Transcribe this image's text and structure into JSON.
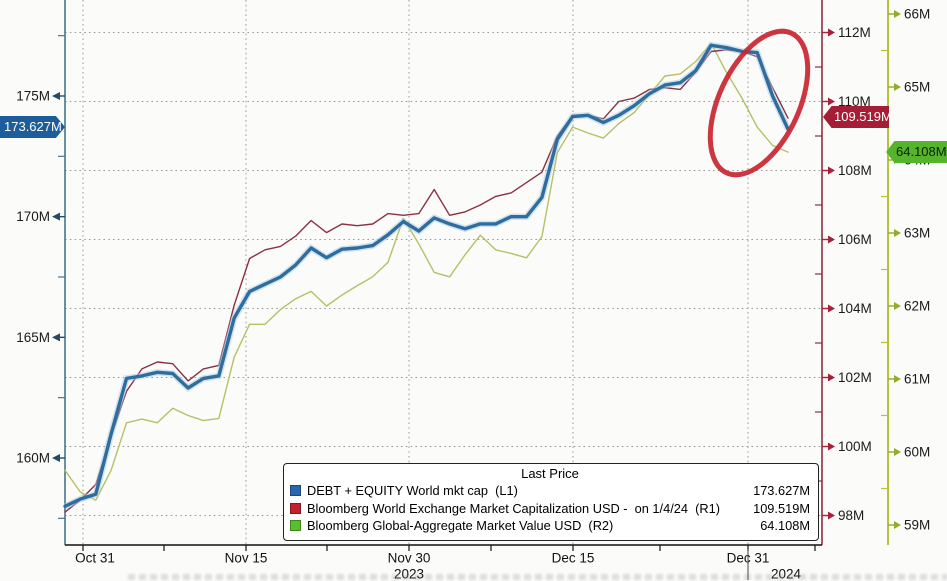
{
  "chart_data": {
    "type": "line",
    "title": "",
    "x_axis": {
      "ticks": [
        {
          "label": "Oct 31"
        },
        {
          "label": "Nov 15"
        },
        {
          "label": "Nov 30"
        },
        {
          "label": "Dec 15"
        },
        {
          "label": "Dec 31"
        }
      ],
      "year_labels": [
        "2023",
        "2024"
      ]
    },
    "axes": {
      "left": {
        "id": "L1",
        "axis_color": "#47758f",
        "arrow_color": "#234a66",
        "ticks": [
          {
            "value": 175,
            "label": "175M"
          },
          {
            "value": 170,
            "label": "170M"
          },
          {
            "value": 165,
            "label": "165M"
          },
          {
            "value": 160,
            "label": "160M"
          }
        ],
        "minor_ticks": [
          177.5,
          172.5,
          167.5,
          162.5,
          157.5
        ],
        "visible_range": [
          156.4,
          179.0
        ]
      },
      "right_1": {
        "id": "R1",
        "axis_color": "#8e2e3f",
        "arrow_color": "#a8203a",
        "ticks": [
          {
            "value": 112,
            "label": "112M"
          },
          {
            "value": 110,
            "label": "110M"
          },
          {
            "value": 108,
            "label": "108M"
          },
          {
            "value": 106,
            "label": "106M"
          },
          {
            "value": 104,
            "label": "104M"
          },
          {
            "value": 102,
            "label": "102M"
          },
          {
            "value": 100,
            "label": "100M"
          },
          {
            "value": 98,
            "label": "98M"
          }
        ],
        "minor_ticks": [
          111,
          109,
          107,
          105,
          103,
          101,
          99
        ],
        "visible_range": [
          97.1,
          112.9
        ]
      },
      "right_2": {
        "id": "R2",
        "axis_color": "#b5c437",
        "arrow_color": "#93ad28",
        "ticks": [
          {
            "value": 66,
            "label": "66M"
          },
          {
            "value": 65,
            "label": "65M"
          },
          {
            "value": 64,
            "label": "64M"
          },
          {
            "value": 63,
            "label": "63M"
          },
          {
            "value": 62,
            "label": "62M"
          },
          {
            "value": 61,
            "label": "61M"
          },
          {
            "value": 60,
            "label": "60M"
          },
          {
            "value": 59,
            "label": "59M"
          }
        ],
        "minor_ticks": [
          65.5,
          64.5,
          63.5,
          62.5,
          61.5,
          60.5,
          59.5
        ],
        "visible_range": [
          58.7,
          66.2
        ]
      }
    },
    "series": [
      {
        "name": "DEBT + EQUITY World mkt cap  (L1)",
        "axis": "L1",
        "color": "#2e6d9e",
        "width": 3.4,
        "last_price": "173.627M",
        "values": [
          158.0,
          158.3,
          158.5,
          161.0,
          163.3,
          163.4,
          163.55,
          163.5,
          162.9,
          163.3,
          163.4,
          165.8,
          166.9,
          167.2,
          167.5,
          168.0,
          168.7,
          168.3,
          168.65,
          168.7,
          168.8,
          169.25,
          169.8,
          169.4,
          169.95,
          169.7,
          169.5,
          169.7,
          169.7,
          170.0,
          170.0,
          170.8,
          173.2,
          174.15,
          174.2,
          173.9,
          174.2,
          174.6,
          175.1,
          175.45,
          175.55,
          176.05,
          177.1,
          177.0,
          176.85,
          176.8,
          175.0,
          173.627
        ]
      },
      {
        "name": "Bloomberg World Exchange Market Capitalization USD -  on 1/4/24  (R1)",
        "axis": "R1",
        "color": "#8b3145",
        "width": 1.4,
        "last_price": "109.519M",
        "values": [
          98.1,
          98.45,
          98.9,
          100.3,
          101.6,
          102.25,
          102.45,
          102.4,
          101.9,
          102.25,
          102.35,
          104.1,
          105.45,
          105.7,
          105.8,
          106.1,
          106.55,
          106.2,
          106.45,
          106.4,
          106.45,
          106.75,
          106.7,
          106.75,
          107.45,
          106.7,
          106.8,
          107.0,
          107.25,
          107.35,
          107.65,
          107.95,
          109.0,
          109.6,
          109.6,
          109.5,
          110.0,
          110.1,
          110.35,
          110.4,
          110.35,
          110.85,
          111.45,
          111.5,
          111.45,
          111.3,
          110.4,
          109.519
        ]
      },
      {
        "name": "Bloomberg Global-Aggregate Market Value USD  (R2)",
        "axis": "R2",
        "color": "#b8bf66",
        "width": 1.4,
        "last_price": "64.108M",
        "values": [
          59.75,
          59.45,
          59.34,
          59.75,
          60.4,
          60.45,
          60.4,
          60.6,
          60.5,
          60.43,
          60.46,
          61.3,
          61.75,
          61.75,
          61.95,
          62.1,
          62.2,
          62.0,
          62.15,
          62.28,
          62.4,
          62.6,
          63.2,
          62.85,
          62.46,
          62.4,
          62.7,
          62.97,
          62.77,
          62.72,
          62.66,
          62.95,
          64.1,
          64.45,
          64.37,
          64.3,
          64.5,
          64.65,
          64.9,
          65.15,
          65.18,
          65.35,
          65.6,
          65.2,
          64.85,
          64.45,
          64.2,
          64.108
        ]
      }
    ],
    "annotation": {
      "shape": "ellipse",
      "color": "#c9242f",
      "meaning": "highlight of recent peak and decline"
    },
    "grid": {
      "horizontal_on_axis": "R1",
      "vertical_on_dates": true
    }
  },
  "legend": {
    "title": "Last Price",
    "items": [
      {
        "label": "DEBT + EQUITY World mkt cap  (L1)",
        "value": "173.627M",
        "color": "#2a66ad"
      },
      {
        "label": "Bloomberg World Exchange Market Capitalization USD -  on 1/4/24  (R1)",
        "value": "109.519M",
        "color": "#c4202e"
      },
      {
        "label": "Bloomberg Global-Aggregate Market Value USD  (R2)",
        "value": "64.108M",
        "color": "#5bbe2d"
      }
    ]
  },
  "price_badges": {
    "l1": {
      "text": "173.627M",
      "bg": "#1d5d9b"
    },
    "r1": {
      "text": "109.519M",
      "bg": "#a51e35"
    },
    "r2": {
      "text": "64.108M",
      "bg": "#55b42c"
    }
  }
}
